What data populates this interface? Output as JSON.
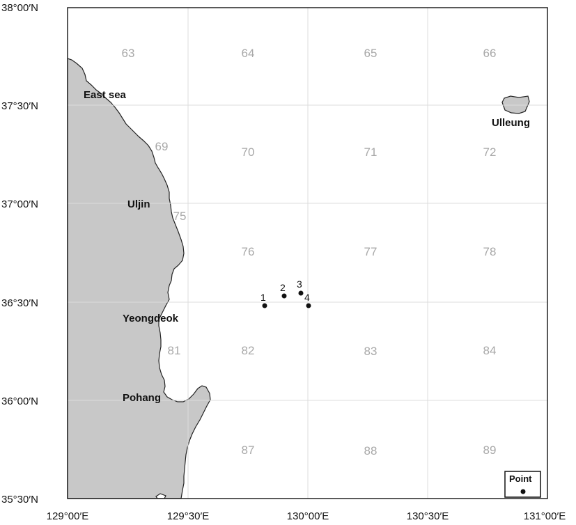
{
  "latitude_labels": [
    "38°00′N",
    "37°30′N",
    "37°00′N",
    "36°30′N",
    "36°00′N",
    "35°30′N"
  ],
  "longitude_labels": [
    "129°00′E",
    "129°30′E",
    "130°00′E",
    "130°30′E",
    "131°00′E"
  ],
  "grid_numbers": [
    "63",
    "64",
    "65",
    "66",
    "69",
    "70",
    "71",
    "72",
    "75",
    "76",
    "77",
    "78",
    "81",
    "82",
    "83",
    "84",
    "87",
    "88",
    "89"
  ],
  "places": {
    "east_sea": "East sea",
    "ulleung": "Ulleung",
    "uljin": "Uljin",
    "yeongdeok": "Yeongdeok",
    "pohang": "Pohang"
  },
  "points": [
    "1",
    "2",
    "3",
    "4"
  ],
  "legend": {
    "label": "Point"
  },
  "colors": {
    "land": "#c8c8c8",
    "coast": "#222222",
    "grid": "#dcdcdc",
    "grid_number": "#a8a8a8"
  }
}
